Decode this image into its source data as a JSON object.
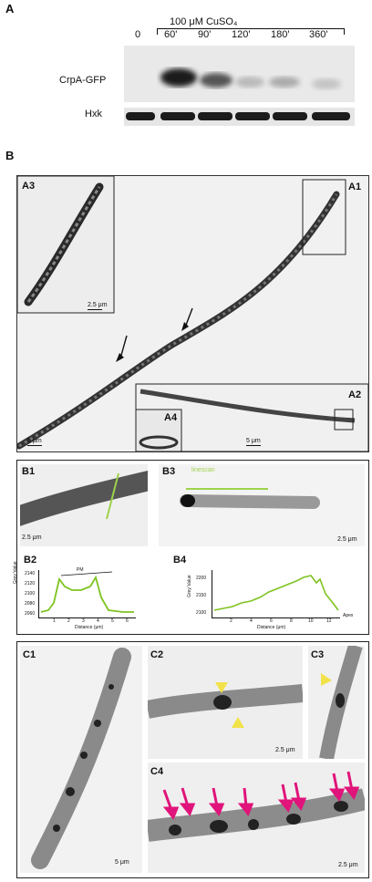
{
  "panelA": {
    "letter": "A",
    "treatment": "100 μM CuSO₄",
    "lanes": [
      "0",
      "60'",
      "90'",
      "120'",
      "180'",
      "360'"
    ],
    "rows": [
      "CrpA-GFP",
      "Hxk"
    ]
  },
  "panelB": {
    "letter": "B",
    "labels": {
      "A1": "A1",
      "A2": "A2",
      "A3": "A3",
      "A4": "A4",
      "B1": "B1",
      "B2": "B2",
      "B3": "B3",
      "B4": "B4"
    },
    "scales": {
      "a3": "2.5 μm",
      "main": "5 μm",
      "a2": "5 μm",
      "b1": "2.5 μm",
      "b3": "2.5 μm"
    },
    "b3_linescan": "linescan",
    "b2": {
      "ylabel": "Grey Value",
      "xlabel": "Distance (μm)",
      "annotation": "PM",
      "yticks": [
        "2140",
        "2120",
        "2100",
        "2080",
        "2060"
      ],
      "xticks": [
        "1",
        "2",
        "3",
        "4",
        "5",
        "6"
      ]
    },
    "b4": {
      "ylabel": "Grey Value",
      "xlabel": "Distance (μm)",
      "annotation": "Apex",
      "yticks": [
        "2200",
        "2150",
        "2100"
      ],
      "xticks": [
        "2",
        "4",
        "6",
        "8",
        "10",
        "12"
      ]
    }
  },
  "panelC": {
    "labels": {
      "C1": "C1",
      "C2": "C2",
      "C3": "C3",
      "C4": "C4"
    },
    "scales": {
      "c1": "5 μm",
      "c2": "2.5 μm",
      "c4": "2.5 μm"
    },
    "arrow_color": "#e0147a",
    "arrowhead_color": "#f2e24a"
  }
}
